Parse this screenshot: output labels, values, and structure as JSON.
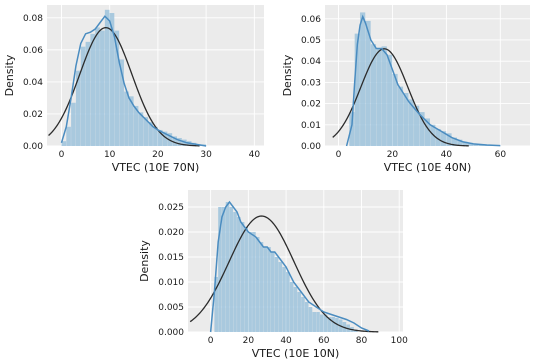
{
  "chart_data": [
    {
      "type": "histogram",
      "xlabel": "VTEC (10E 70N)",
      "ylabel": "Density",
      "xlim": [
        -3,
        42
      ],
      "ylim": [
        0,
        0.088
      ],
      "xticks": [
        0,
        10,
        20,
        30,
        40
      ],
      "yticks": [
        0.0,
        0.02,
        0.04,
        0.06,
        0.08
      ],
      "ytick_labels": [
        "0.00",
        "0.02",
        "0.04",
        "0.06",
        "0.08"
      ],
      "grid": true,
      "histogram": {
        "bin_width": 1,
        "bin_edges_start": 0,
        "density": [
          0.003,
          0.012,
          0.027,
          0.047,
          0.062,
          0.065,
          0.07,
          0.074,
          0.072,
          0.085,
          0.083,
          0.072,
          0.054,
          0.034,
          0.031,
          0.025,
          0.021,
          0.018,
          0.015,
          0.012,
          0.01,
          0.009,
          0.008,
          0.006,
          0.005,
          0.004,
          0.003,
          0.002,
          0.001,
          0.001
        ]
      },
      "kde": {
        "x": [
          0,
          1,
          2,
          3,
          4,
          5,
          6,
          7,
          8,
          9,
          10,
          11,
          12,
          13,
          14,
          15,
          16,
          17,
          18,
          19,
          20,
          22,
          24,
          26,
          28,
          30
        ],
        "y": [
          0.002,
          0.012,
          0.03,
          0.05,
          0.064,
          0.07,
          0.071,
          0.073,
          0.077,
          0.081,
          0.078,
          0.068,
          0.052,
          0.039,
          0.03,
          0.025,
          0.021,
          0.018,
          0.015,
          0.012,
          0.01,
          0.007,
          0.004,
          0.002,
          0.001,
          0.0
        ]
      },
      "normal_fit": {
        "mean": 9.2,
        "sd": 5.4
      }
    },
    {
      "type": "histogram",
      "xlabel": "VTEC (10E 40N)",
      "ylabel": "Density",
      "xlim": [
        -5,
        71
      ],
      "ylim": [
        0,
        0.0665
      ],
      "xticks": [
        0,
        20,
        40,
        60
      ],
      "yticks": [
        0.0,
        0.01,
        0.02,
        0.03,
        0.04,
        0.05,
        0.06
      ],
      "ytick_labels": [
        "0.00",
        "0.01",
        "0.02",
        "0.03",
        "0.04",
        "0.05",
        "0.06"
      ],
      "grid": true,
      "histogram": {
        "bin_width": 2,
        "bin_edges_start": 4,
        "density": [
          0.016,
          0.053,
          0.063,
          0.059,
          0.048,
          0.046,
          0.047,
          0.043,
          0.034,
          0.028,
          0.025,
          0.022,
          0.019,
          0.016,
          0.013,
          0.01,
          0.008,
          0.007,
          0.006,
          0.004,
          0.003,
          0.002,
          0.0015,
          0.001,
          0.0007,
          0.0004,
          0.0002
        ]
      },
      "kde": {
        "x": [
          3,
          5,
          6,
          7,
          8,
          9,
          10,
          12,
          14,
          16,
          18,
          20,
          22,
          24,
          26,
          28,
          30,
          34,
          38,
          42,
          46,
          50,
          55,
          60
        ],
        "y": [
          0.0,
          0.01,
          0.03,
          0.048,
          0.057,
          0.061,
          0.058,
          0.05,
          0.046,
          0.046,
          0.043,
          0.036,
          0.029,
          0.025,
          0.021,
          0.018,
          0.015,
          0.01,
          0.007,
          0.004,
          0.002,
          0.001,
          0.0005,
          0.0002
        ]
      },
      "normal_fit": {
        "mean": 17,
        "sd": 8.7
      }
    },
    {
      "type": "histogram",
      "xlabel": "VTEC (10E 10N)",
      "ylabel": "Density",
      "xlim": [
        -12,
        102
      ],
      "ylim": [
        0,
        0.0284
      ],
      "xticks": [
        0,
        20,
        40,
        60,
        80,
        100
      ],
      "yticks": [
        0.0,
        0.005,
        0.01,
        0.015,
        0.02,
        0.025
      ],
      "ytick_labels": [
        "0.000",
        "0.005",
        "0.010",
        "0.015",
        "0.020",
        "0.025"
      ],
      "grid": true,
      "histogram": {
        "bin_width": 2,
        "bin_edges_start": 2,
        "density": [
          0.011,
          0.025,
          0.025,
          0.026,
          0.025,
          0.024,
          0.023,
          0.022,
          0.021,
          0.02,
          0.02,
          0.019,
          0.018,
          0.017,
          0.017,
          0.016,
          0.015,
          0.014,
          0.013,
          0.012,
          0.01,
          0.009,
          0.008,
          0.007,
          0.006,
          0.005,
          0.004,
          0.004,
          0.0035,
          0.0035,
          0.003,
          0.003,
          0.0028,
          0.0025,
          0.002,
          0.0015,
          0.001,
          0.0005
        ]
      },
      "kde": {
        "x": [
          0,
          2,
          4,
          6,
          8,
          10,
          12,
          14,
          16,
          18,
          20,
          22,
          24,
          26,
          28,
          30,
          32,
          34,
          36,
          38,
          40,
          44,
          48,
          52,
          56,
          60,
          64,
          68,
          72,
          76,
          80,
          84
        ],
        "y": [
          0.0,
          0.008,
          0.018,
          0.023,
          0.025,
          0.026,
          0.025,
          0.024,
          0.022,
          0.021,
          0.02,
          0.0195,
          0.019,
          0.018,
          0.017,
          0.017,
          0.016,
          0.016,
          0.015,
          0.014,
          0.013,
          0.01,
          0.008,
          0.006,
          0.005,
          0.004,
          0.0035,
          0.003,
          0.0025,
          0.0018,
          0.0008,
          0.0002
        ]
      },
      "normal_fit": {
        "mean": 27,
        "sd": 17.2
      }
    }
  ]
}
